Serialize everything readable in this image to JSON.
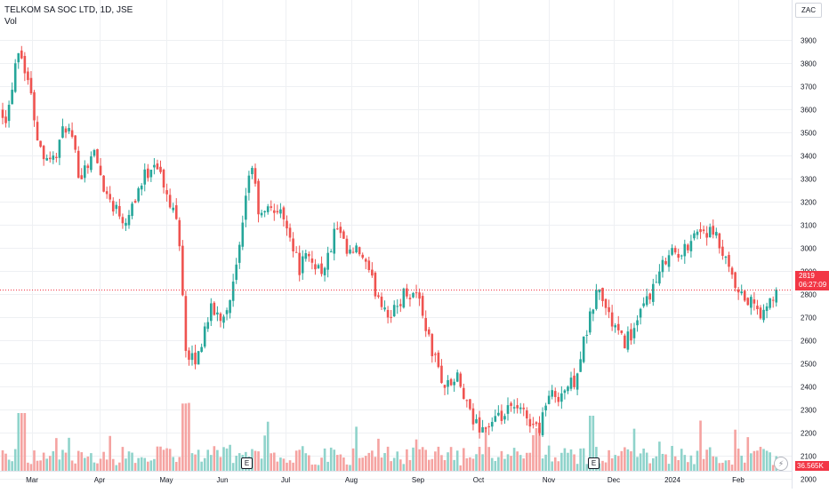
{
  "header": {
    "symbol_line": "TELKOM SA SOC LTD, 1D, JSE",
    "volume_label": "Vol"
  },
  "currency_label": "ZAC",
  "last_price": {
    "value": "2819",
    "countdown": "06:27:09"
  },
  "last_volume": "36.565K",
  "earnings_badge": "E",
  "flash_icon": "⚡",
  "colors": {
    "up": "#26a69a",
    "down": "#ef5350",
    "up_volume": "#8fd3cb",
    "down_volume": "#f5a3a1",
    "grid": "#eef0f3",
    "price_line": "#f23645"
  },
  "chart_data": {
    "type": "candlestick",
    "title": "TELKOM SA SOC LTD, 1D, JSE",
    "y_axis": {
      "ticks": [
        2000,
        2100,
        2200,
        2300,
        2400,
        2500,
        2600,
        2700,
        2800,
        2900,
        3000,
        3100,
        3200,
        3300,
        3400,
        3500,
        3600,
        3700,
        3800,
        3900
      ],
      "ylim": [
        1930,
        3985
      ],
      "unit": "ZAC"
    },
    "x_axis": {
      "labels": [
        "Mar",
        "Apr",
        "May",
        "Jun",
        "Jul",
        "Aug",
        "Sep",
        "Oct",
        "Nov",
        "Dec",
        "2024",
        "Feb"
      ],
      "range": "2023-02-20 to 2024-02-23"
    },
    "price_trend": [
      [
        0,
        3620
      ],
      [
        8,
        3560
      ],
      [
        20,
        3880
      ],
      [
        30,
        3760
      ],
      [
        45,
        3430
      ],
      [
        60,
        3380
      ],
      [
        75,
        3540
      ],
      [
        90,
        3310
      ],
      [
        105,
        3420
      ],
      [
        120,
        3230
      ],
      [
        140,
        3120
      ],
      [
        160,
        3290
      ],
      [
        175,
        3390
      ],
      [
        190,
        3180
      ],
      [
        200,
        3150
      ],
      [
        210,
        2500
      ],
      [
        222,
        2520
      ],
      [
        235,
        2730
      ],
      [
        250,
        2700
      ],
      [
        262,
        2830
      ],
      [
        272,
        3050
      ],
      [
        282,
        3390
      ],
      [
        292,
        3120
      ],
      [
        305,
        3180
      ],
      [
        322,
        3120
      ],
      [
        336,
        2910
      ],
      [
        342,
        2950
      ],
      [
        352,
        2940
      ],
      [
        365,
        2900
      ],
      [
        378,
        3090
      ],
      [
        390,
        2970
      ],
      [
        405,
        2980
      ],
      [
        420,
        2830
      ],
      [
        440,
        2700
      ],
      [
        455,
        2810
      ],
      [
        470,
        2800
      ],
      [
        485,
        2560
      ],
      [
        500,
        2400
      ],
      [
        515,
        2430
      ],
      [
        530,
        2250
      ],
      [
        545,
        2220
      ],
      [
        560,
        2250
      ],
      [
        575,
        2300
      ],
      [
        590,
        2280
      ],
      [
        605,
        2210
      ],
      [
        615,
        2350
      ],
      [
        630,
        2370
      ],
      [
        645,
        2420
      ],
      [
        660,
        2640
      ],
      [
        672,
        2830
      ],
      [
        685,
        2700
      ],
      [
        700,
        2590
      ],
      [
        715,
        2650
      ],
      [
        728,
        2790
      ],
      [
        740,
        2860
      ],
      [
        752,
        3000
      ],
      [
        765,
        2950
      ],
      [
        778,
        3060
      ],
      [
        790,
        3080
      ],
      [
        805,
        3040
      ],
      [
        818,
        2910
      ],
      [
        830,
        2790
      ],
      [
        845,
        2760
      ],
      [
        858,
        2700
      ],
      [
        872,
        2819
      ]
    ],
    "last_close": 2819,
    "volume": {
      "last": "36.565K"
    }
  }
}
